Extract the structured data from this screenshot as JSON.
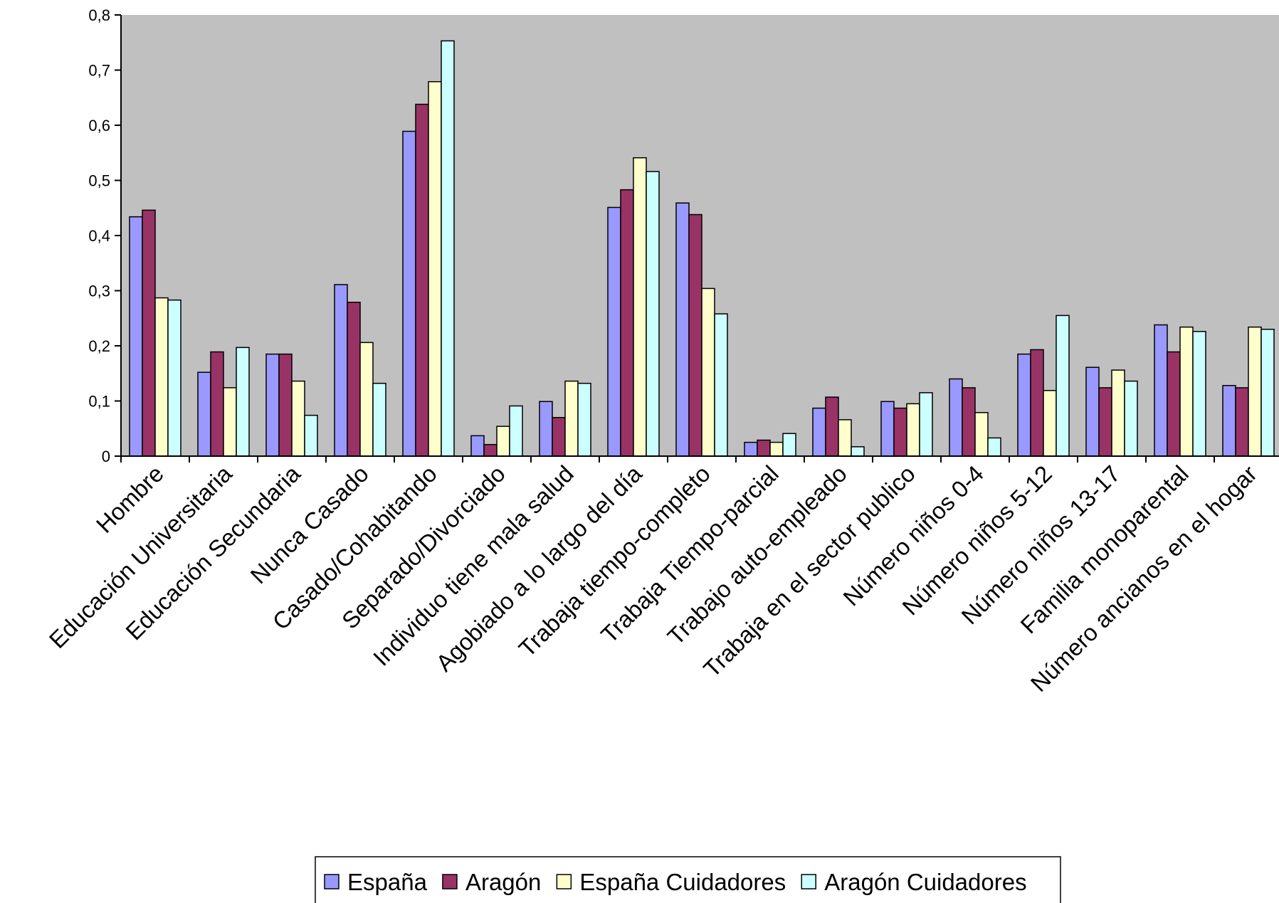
{
  "chart_data": {
    "type": "bar",
    "title": "",
    "xlabel": "",
    "ylabel": "",
    "ylim": [
      0,
      0.8
    ],
    "yticks": [
      "0",
      "0,1",
      "0,2",
      "0,3",
      "0,4",
      "0,5",
      "0,6",
      "0,7",
      "0,8"
    ],
    "grid": false,
    "legend_position": "bottom",
    "plot_background": "#c0c0c0",
    "categories": [
      "Hombre",
      "Educación Universitaria",
      "Educación Secundaria",
      "Nunca Casado",
      "Casado/Cohabitando",
      "Separado/Divorciado",
      "Individuo tiene mala salud",
      "Agobiado a lo largo del día",
      "Trabaja tiempo-completo",
      "Trabaja Tiempo-parcial",
      "Trabajo auto-empleado",
      "Trabaja en el sector publico",
      "Número niños 0-4",
      "Número niños 5-12",
      "Número niños 13-17",
      "Familia monoparental",
      "Número ancianos en el hogar"
    ],
    "series": [
      {
        "name": "España",
        "color": "#9999ff",
        "values": [
          0.434,
          0.152,
          0.185,
          0.311,
          0.589,
          0.037,
          0.099,
          0.451,
          0.459,
          0.025,
          0.087,
          0.099,
          0.14,
          0.185,
          0.161,
          0.238,
          0.128
        ]
      },
      {
        "name": "Aragón",
        "color": "#993366",
        "values": [
          0.446,
          0.189,
          0.185,
          0.279,
          0.638,
          0.021,
          0.07,
          0.483,
          0.438,
          0.029,
          0.107,
          0.087,
          0.124,
          0.193,
          0.124,
          0.189,
          0.124
        ]
      },
      {
        "name": "España Cuidadores",
        "color": "#ffffcc",
        "values": [
          0.287,
          0.124,
          0.136,
          0.206,
          0.679,
          0.054,
          0.136,
          0.541,
          0.304,
          0.025,
          0.066,
          0.095,
          0.079,
          0.119,
          0.156,
          0.234,
          0.234
        ]
      },
      {
        "name": "Aragón Cuidadores",
        "color": "#ccffff",
        "values": [
          0.283,
          0.197,
          0.074,
          0.132,
          0.753,
          0.091,
          0.132,
          0.516,
          0.258,
          0.041,
          0.017,
          0.115,
          0.033,
          0.255,
          0.136,
          0.226,
          0.23
        ]
      }
    ]
  }
}
